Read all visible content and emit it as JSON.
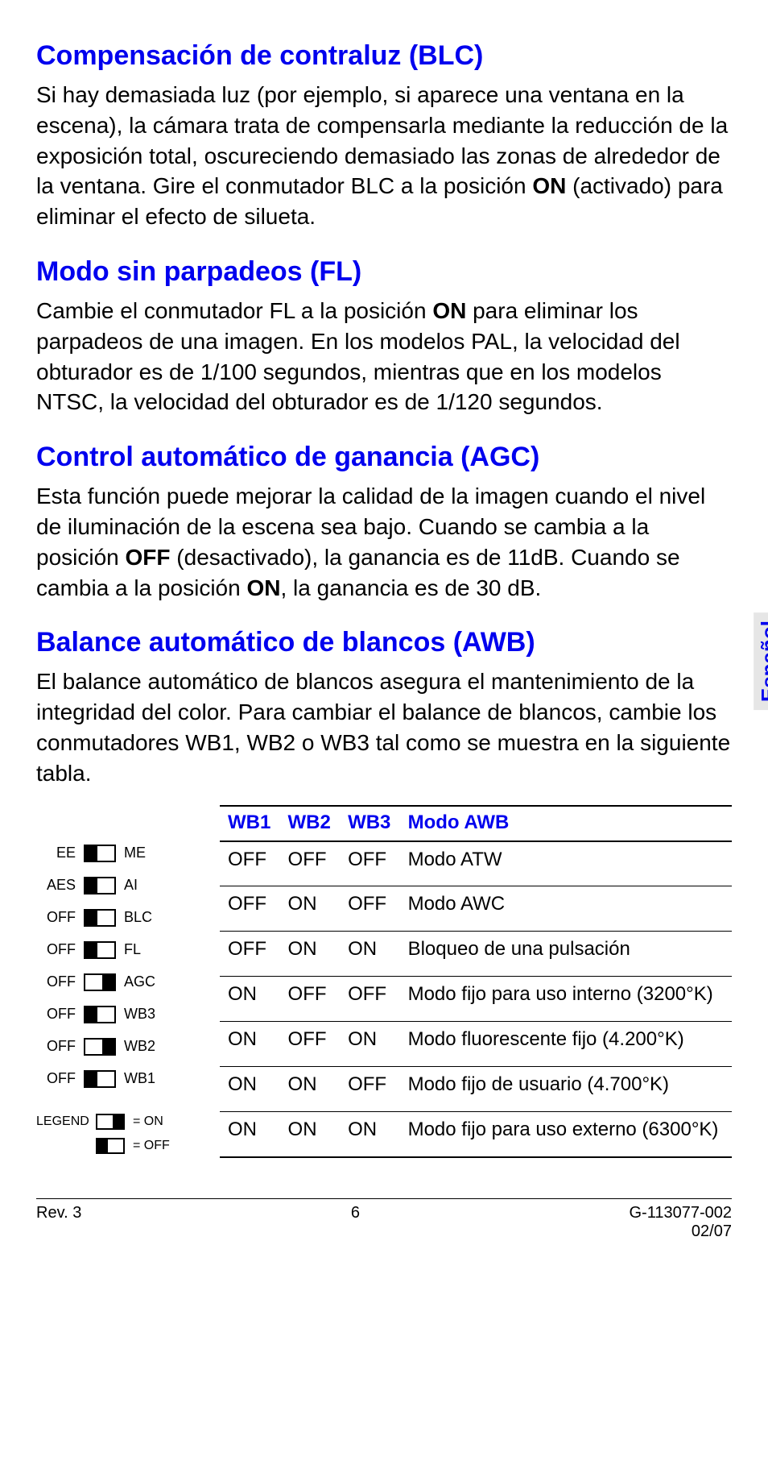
{
  "side_label": "Español",
  "sections": [
    {
      "heading": "Compensación de contraluz (BLC)",
      "body_pre": "Si hay demasiada luz (por ejemplo, si aparece una ventana en la escena), la cámara trata de compensarla mediante la reducción de la exposición total, oscureciendo demasiado las zonas de alrededor de la ventana. Gire el conmutador BLC a la posición ",
      "bold1": "ON",
      "body_mid": " (activado) para eliminar el efecto de silueta.",
      "bold2": "",
      "body_post": ""
    },
    {
      "heading": "Modo sin parpadeos (FL)",
      "body_pre": "Cambie el conmutador FL a la posición ",
      "bold1": "ON",
      "body_mid": " para eliminar los parpadeos de una imagen. En los modelos PAL, la velocidad del obturador es de 1/100 segundos, mientras que en los modelos NTSC, la velocidad del obturador es de 1/120 segundos.",
      "bold2": "",
      "body_post": ""
    },
    {
      "heading": "Control automático de ganancia (AGC)",
      "body_pre": "Esta función puede mejorar la calidad de la imagen cuando el nivel de iluminación de la escena sea bajo. Cuando se cambia a la posición ",
      "bold1": "OFF",
      "body_mid": " (desactivado), la ganancia es de 11dB. Cuando se cambia a la posición ",
      "bold2": "ON",
      "body_post": ", la ganancia es de 30 dB."
    },
    {
      "heading": "Balance automático de blancos (AWB)",
      "body_pre": "El balance automático de blancos asegura el mantenimiento de la integridad del color. Para cambiar el balance de blancos, cambie los conmutadores WB1, WB2 o WB3 tal como se muestra en la siguiente tabla.",
      "bold1": "",
      "body_mid": "",
      "bold2": "",
      "body_post": ""
    }
  ],
  "switch_diagram": {
    "rows": [
      {
        "left": "EE",
        "state": "off",
        "right": "ME"
      },
      {
        "left": "AES",
        "state": "off",
        "right": "AI"
      },
      {
        "left": "OFF",
        "state": "off",
        "right": "BLC"
      },
      {
        "left": "OFF",
        "state": "off",
        "right": "FL"
      },
      {
        "left": "OFF",
        "state": "on",
        "right": "AGC"
      },
      {
        "left": "OFF",
        "state": "off",
        "right": "WB3"
      },
      {
        "left": "OFF",
        "state": "on",
        "right": "WB2"
      },
      {
        "left": "OFF",
        "state": "off",
        "right": "WB1"
      }
    ],
    "legend_label": "LEGEND",
    "legend_on": "= ON",
    "legend_off": "= OFF"
  },
  "awb_table": {
    "headers": [
      "WB1",
      "WB2",
      "WB3",
      "Modo AWB"
    ],
    "rows": [
      [
        "OFF",
        "OFF",
        "OFF",
        "Modo ATW"
      ],
      [
        "OFF",
        "ON",
        "OFF",
        "Modo AWC"
      ],
      [
        "OFF",
        "ON",
        "ON",
        "Bloqueo de una pulsación"
      ],
      [
        "ON",
        "OFF",
        "OFF",
        "Modo fijo para uso interno (3200°K)"
      ],
      [
        "ON",
        "OFF",
        "ON",
        "Modo fluorescente fijo (4.200°K)"
      ],
      [
        "ON",
        "ON",
        "OFF",
        "Modo fijo de usuario (4.700°K)"
      ],
      [
        "ON",
        "ON",
        "ON",
        "Modo fijo para uso externo (6300°K)"
      ]
    ]
  },
  "footer": {
    "rev": "Rev.  3",
    "page": "6",
    "doc": "G-113077-002",
    "date": "02/07"
  }
}
